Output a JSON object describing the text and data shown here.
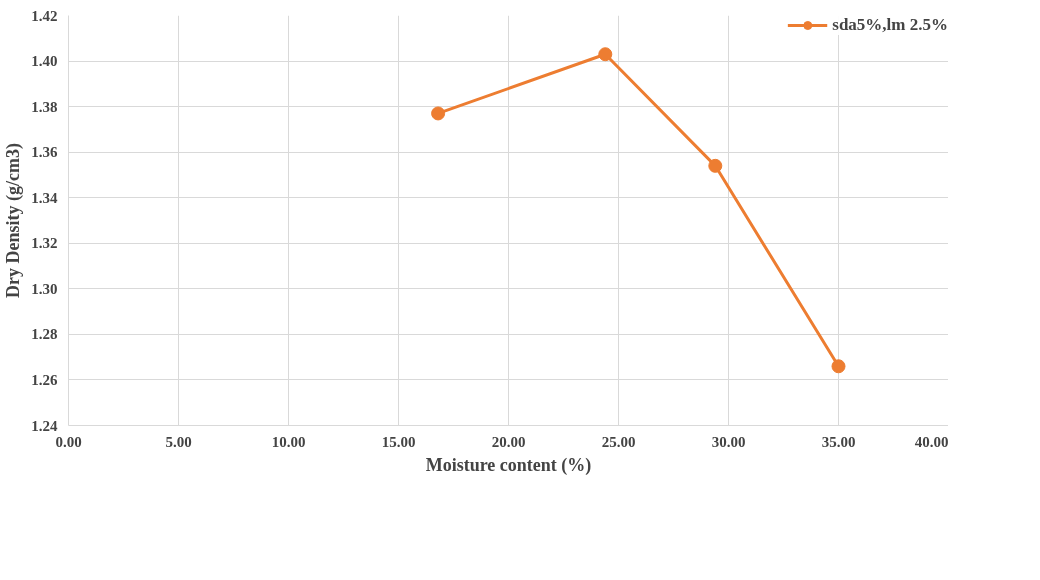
{
  "chart_data": {
    "type": "line",
    "xlabel": "Moisture content (%)",
    "ylabel": "Dry Density (g/cm3)",
    "x": [
      16.8,
      24.4,
      29.4,
      35.0
    ],
    "series": [
      {
        "name": "sda5%,lm 2.5%",
        "color": "#ed7d31",
        "values": [
          1.377,
          1.403,
          1.354,
          1.266
        ]
      }
    ],
    "xlim": [
      0,
      40
    ],
    "xticks": [
      {
        "value": 0,
        "label": "0.00"
      },
      {
        "value": 5,
        "label": "5.00"
      },
      {
        "value": 10,
        "label": "10.00"
      },
      {
        "value": 15,
        "label": "15.00"
      },
      {
        "value": 20,
        "label": "20.00"
      },
      {
        "value": 25,
        "label": "25.00"
      },
      {
        "value": 30,
        "label": "30.00"
      },
      {
        "value": 35,
        "label": "35.00"
      },
      {
        "value": 40,
        "label": "40.00"
      }
    ],
    "ylim": [
      1.24,
      1.42
    ],
    "yticks": [
      {
        "value": 1.24,
        "label": "1.24"
      },
      {
        "value": 1.26,
        "label": "1.26"
      },
      {
        "value": 1.28,
        "label": "1.28"
      },
      {
        "value": 1.3,
        "label": "1.30"
      },
      {
        "value": 1.32,
        "label": "1.32"
      },
      {
        "value": 1.34,
        "label": "1.34"
      },
      {
        "value": 1.36,
        "label": "1.36"
      },
      {
        "value": 1.38,
        "label": "1.38"
      },
      {
        "value": 1.4,
        "label": "1.40"
      },
      {
        "value": 1.42,
        "label": "1.42"
      }
    ],
    "grid": true,
    "legend": "top right",
    "marker": "circle",
    "line_style": "solid"
  }
}
